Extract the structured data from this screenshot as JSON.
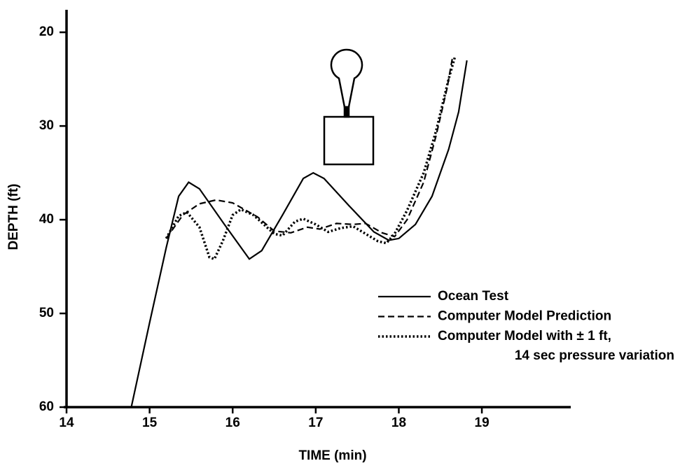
{
  "chart_data": {
    "type": "line",
    "x_label": "TIME (min)",
    "y_label": "DEPTH (ft)",
    "xlim": [
      14,
      20.07
    ],
    "xticks": [
      14,
      15,
      16,
      17,
      18,
      19
    ],
    "ylim": [
      60,
      17.6
    ],
    "yticks": [
      20,
      30,
      40,
      50,
      60
    ],
    "series": [
      {
        "name": "Ocean Test",
        "color": "#000000",
        "dash": "solid",
        "x": [
          14.78,
          15.0,
          15.2,
          15.35,
          15.47,
          15.6,
          15.9,
          16.2,
          16.35,
          16.6,
          16.85,
          16.97,
          17.1,
          17.4,
          17.7,
          17.88,
          18.0,
          18.2,
          18.4,
          18.6,
          18.72,
          18.82
        ],
        "values": [
          60,
          51,
          43,
          37.5,
          36,
          36.7,
          40.5,
          44.2,
          43.3,
          39.5,
          35.6,
          35,
          35.6,
          38.5,
          41.3,
          42.2,
          42,
          40.5,
          37.5,
          32.5,
          28.5,
          23
        ]
      },
      {
        "name": "Computer Model Prediction",
        "color": "#000000",
        "dash": "dashed",
        "x": [
          15.2,
          15.4,
          15.6,
          15.8,
          16.0,
          16.3,
          16.5,
          16.7,
          16.9,
          17.05,
          17.25,
          17.45,
          17.6,
          17.8,
          17.95,
          18.1,
          18.3,
          18.45,
          18.58,
          18.65
        ],
        "values": [
          42,
          39.5,
          38.3,
          37.9,
          38.2,
          39.7,
          41.2,
          41.4,
          40.8,
          41.0,
          40.4,
          40.5,
          40.4,
          41.4,
          41.8,
          40,
          36,
          31,
          26,
          22.5
        ]
      },
      {
        "name": "Computer Model with ± 1 ft,\n14 sec pressure variation",
        "color": "#000000",
        "dash": "dotted",
        "x": [
          15.2,
          15.35,
          15.45,
          15.6,
          15.72,
          15.78,
          15.88,
          16.0,
          16.1,
          16.25,
          16.5,
          16.6,
          16.75,
          16.85,
          17.0,
          17.15,
          17.3,
          17.45,
          17.6,
          17.75,
          17.85,
          17.95,
          18.1,
          18.3,
          18.45,
          18.6,
          18.68
        ],
        "values": [
          42,
          39.6,
          39.2,
          40.8,
          44,
          44.2,
          42.3,
          39.5,
          38.9,
          39.5,
          41.5,
          41.7,
          40.2,
          39.9,
          40.5,
          41.3,
          40.9,
          40.7,
          41.5,
          42.3,
          42.5,
          41.5,
          39,
          35,
          30.5,
          25,
          22.5
        ]
      }
    ]
  }
}
